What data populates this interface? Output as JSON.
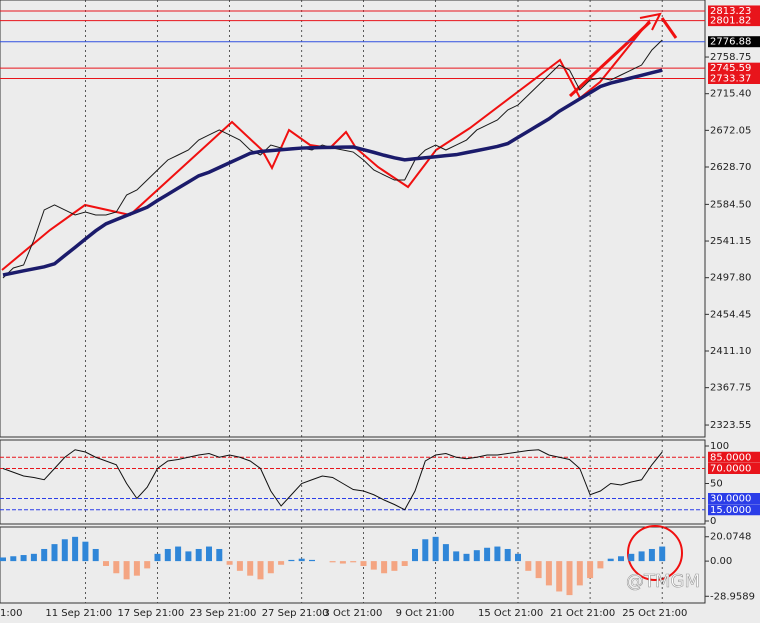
{
  "chart_data": [
    {
      "type": "line",
      "categories": [
        "1:00",
        null,
        null,
        null,
        null,
        null,
        null,
        null,
        "11 Sep 21:00",
        null,
        null,
        null,
        null,
        null,
        null,
        "17 Sep 21:00",
        null,
        null,
        null,
        null,
        null,
        null,
        "23 Sep 21:00",
        null,
        null,
        null,
        null,
        null,
        null,
        "27 Sep 21:00",
        null,
        null,
        null,
        null,
        null,
        "3 Oct 21:00",
        null,
        null,
        null,
        null,
        null,
        null,
        "9 Oct 21:00",
        null,
        null,
        null,
        null,
        null,
        null,
        null,
        "15 Oct 21:00",
        null,
        null,
        null,
        null,
        null,
        null,
        "21 Oct 21:00",
        null,
        null,
        null,
        null,
        null,
        null,
        "25 Oct 21:00"
      ],
      "series": [
        {
          "color": "#1a1a1a",
          "values": [
            2497.4,
            2509.3,
            2512.8,
            2542.4,
            2577.9,
            2583.8,
            2577.9,
            2572.0,
            2575.5,
            2572.0,
            2572.0,
            2575.5,
            2595.6,
            2601.5,
            2613.3,
            2625.2,
            2637.0,
            2642.9,
            2648.8,
            2660.6,
            2666.6,
            2672.5,
            2666.6,
            2660.6,
            2648.8,
            2642.9,
            2654.7,
            2651.2,
            2648.8,
            2651.2,
            2648.8,
            2654.7,
            2651.2,
            2648.8,
            2646.4,
            2637.0,
            2625.2,
            2619.2,
            2613.3,
            2613.3,
            2637.0,
            2648.8,
            2654.7,
            2648.8,
            2654.7,
            2660.6,
            2672.5,
            2678.4,
            2684.3,
            2696.1,
            2702.0,
            2713.9,
            2725.7,
            2737.5,
            2749.3,
            2743.4,
            2719.8,
            2731.6,
            2734.0,
            2731.6,
            2737.5,
            2743.4,
            2749.3,
            2767.1,
            2778.9
          ]
        },
        {
          "color": "#1b1b6b",
          "values": [
            2501.0,
            2503.4,
            2505.9,
            2508.3,
            2510.7,
            2514.2,
            2524.0,
            2533.7,
            2543.5,
            2553.2,
            2561.5,
            2566.4,
            2571.3,
            2576.2,
            2581.1,
            2589.1,
            2596.4,
            2603.7,
            2611.0,
            2618.3,
            2622.5,
            2628.1,
            2633.7,
            2639.3,
            2644.9,
            2647.1,
            2648.1,
            2649.1,
            2650.1,
            2651.1,
            2651.4,
            2651.7,
            2651.9,
            2652.2,
            2652.4,
            2649.2,
            2646.0,
            2642.6,
            2639.6,
            2637.1,
            2638.4,
            2639.6,
            2640.8,
            2642.1,
            2643.3,
            2645.7,
            2648.1,
            2650.5,
            2653.0,
            2656.4,
            2663.7,
            2671.0,
            2678.3,
            2685.6,
            2694.6,
            2701.9,
            2709.2,
            2716.5,
            2723.9,
            2728.0,
            2731.0,
            2734.1,
            2737.1,
            2740.2,
            2743.2
          ]
        }
      ],
      "ylim": [
        2309.4,
        2826.2
      ],
      "yticks": [
        {
          "value": 2758.75,
          "label": "2758.75"
        },
        {
          "value": 2715.4,
          "label": "2715.40"
        },
        {
          "value": 2672.05,
          "label": "2672.05"
        },
        {
          "value": 2628.7,
          "label": "2628.70"
        },
        {
          "value": 2584.5,
          "label": "2584.50"
        },
        {
          "value": 2541.15,
          "label": "2541.15"
        },
        {
          "value": 2497.8,
          "label": "2497.80"
        },
        {
          "value": 2454.45,
          "label": "2454.45"
        },
        {
          "value": 2411.1,
          "label": "2411.10"
        },
        {
          "value": 2367.75,
          "label": "2367.75"
        },
        {
          "value": 2323.55,
          "label": "2323.55"
        }
      ],
      "levels": [
        {
          "value": 2813.23,
          "color": "#e8141b"
        },
        {
          "value": 2801.82,
          "color": "#e8141b"
        },
        {
          "value": 2776.88,
          "color": "#000000"
        },
        {
          "value": 2745.59,
          "color": "#e8141b"
        },
        {
          "value": 2733.37,
          "color": "#e8141b"
        }
      ],
      "vgrid": true
    },
    {
      "type": "line",
      "series": [
        {
          "color": "#111111",
          "values": [
            70,
            65,
            60,
            58,
            55,
            70,
            85,
            95,
            92,
            85,
            80,
            75,
            50,
            30,
            45,
            70,
            80,
            82,
            85,
            88,
            90,
            85,
            88,
            85,
            80,
            70,
            40,
            20,
            35,
            50,
            55,
            60,
            58,
            50,
            42,
            40,
            35,
            28,
            22,
            15,
            40,
            80,
            88,
            90,
            85,
            83,
            85,
            88,
            88,
            90,
            92,
            94,
            95,
            88,
            85,
            82,
            70,
            35,
            40,
            50,
            48,
            52,
            55,
            75,
            92
          ]
        }
      ],
      "ylim": [
        -4,
        108
      ],
      "yticks": [
        100,
        50,
        0
      ],
      "levels": [
        {
          "value": 85,
          "label": "85.0000",
          "color": "#e8141b"
        },
        {
          "value": 70,
          "label": "70.0000",
          "color": "#e8141b"
        },
        {
          "value": 30,
          "label": "30.0000",
          "color": "#2b3de8"
        },
        {
          "value": 15,
          "label": "15.0000",
          "color": "#2b3de8"
        }
      ],
      "vgrid": true
    },
    {
      "type": "bar",
      "values": [
        3,
        4,
        5,
        6,
        10,
        14,
        18,
        20,
        16,
        10,
        -4,
        -10,
        -15,
        -12,
        -6,
        6,
        10,
        12,
        8,
        10,
        12,
        10,
        -3,
        -8,
        -12,
        -15,
        -10,
        -3,
        1,
        2,
        1,
        0,
        -1,
        -2,
        -1,
        -4,
        -7,
        -10,
        -8,
        -4,
        10,
        18,
        20,
        14,
        8,
        6,
        9,
        11,
        12,
        10,
        6,
        -8,
        -14,
        -20,
        -25,
        -28,
        -20,
        -14,
        -6,
        2,
        4,
        6,
        8,
        10,
        12
      ],
      "positive_color": "#2f86d8",
      "negative_color": "#f4a582",
      "ylim": [
        -34.5,
        28.1
      ],
      "yticks": [
        20.0748,
        {
          "value": 0,
          "label": "0.00"
        },
        -28.9589
      ],
      "vgrid": true
    }
  ],
  "watermark": "@TMGM"
}
